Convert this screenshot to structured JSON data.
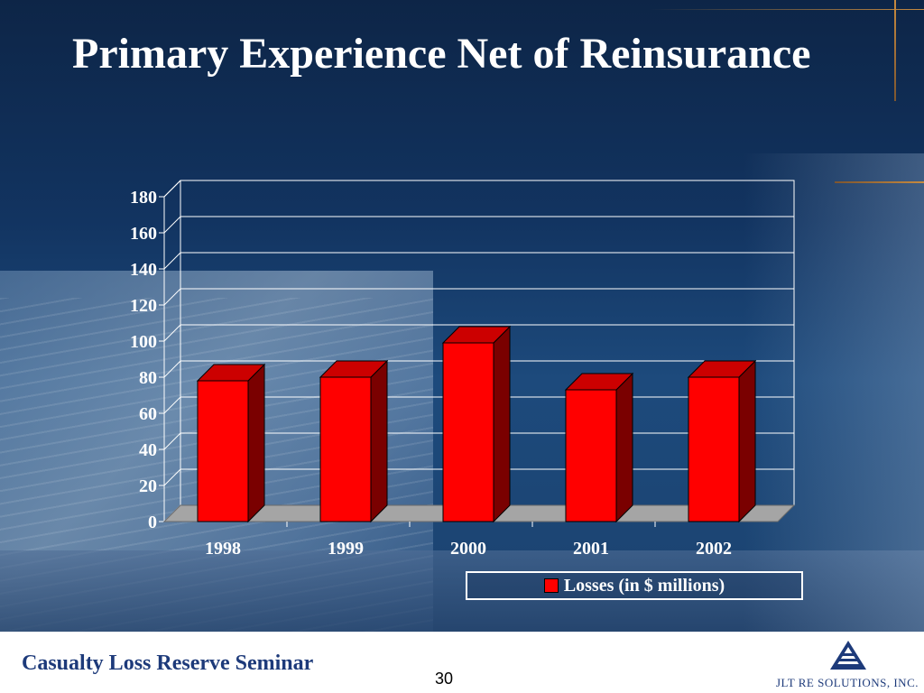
{
  "slide": {
    "title": "Primary Experience Net of Reinsurance"
  },
  "chart_data": {
    "type": "bar",
    "categories": [
      "1998",
      "1999",
      "2000",
      "2001",
      "2002"
    ],
    "series": [
      {
        "name": "Losses (in $ millions)",
        "values": [
          78,
          80,
          99,
          73,
          80
        ]
      }
    ],
    "ylim": [
      0,
      180
    ],
    "yticks": [
      "0",
      "20",
      "40",
      "60",
      "80",
      "100",
      "120",
      "140",
      "160",
      "180"
    ],
    "grid": true,
    "legend_position": "bottom-right",
    "style": "3d",
    "colors": {
      "bar_face": "#ff0000",
      "bar_side": "#7a0000",
      "bar_top": "#cc0000",
      "grid": "#ffffff",
      "floor": "#a5a5a5"
    }
  },
  "footer": {
    "seminar_title": "Casualty Loss Reserve Seminar",
    "page_number": "30",
    "company": "JLT RE SOLUTIONS, INC.",
    "logo_icon": "jlt-triangle-logo-icon"
  }
}
